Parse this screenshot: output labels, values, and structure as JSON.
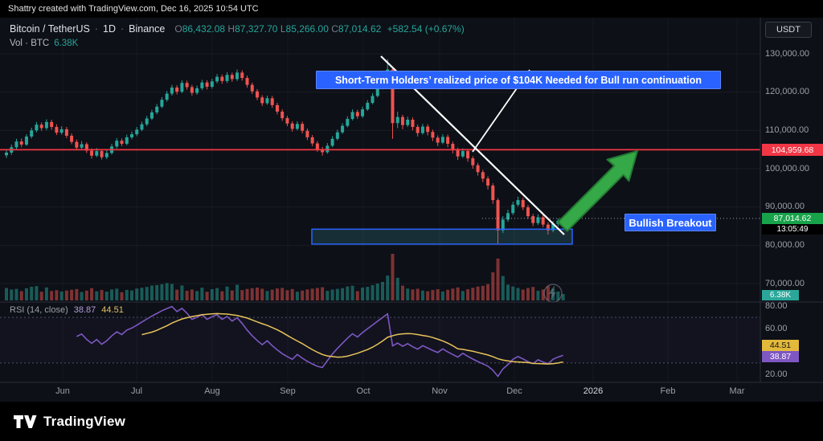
{
  "topbar": {
    "text": "Shattry created with TradingView.com, Dec 16, 2025 10:54 UTC"
  },
  "legend": {
    "symbol": "Bitcoin / TetherUS",
    "sep": "·",
    "interval": "1D",
    "exchange": "Binance",
    "ohlc": {
      "o": "O",
      "o_val": "86,432.08",
      "h": "H",
      "h_val": "87,327.70",
      "l": "L",
      "l_val": "85,266.00",
      "c": "C",
      "c_val": "87,014.62",
      "change": "+582.54 (+0.67%)"
    },
    "volume_label": "Vol · BTC",
    "volume_value": "6.38K"
  },
  "toolbar": {
    "usdt_label": "USDT"
  },
  "annotations": {
    "main": "Short-Term Holders’ realized price of $104K Needed for Bull run continuation",
    "breakout": "Bullish Breakout"
  },
  "axis_tags": {
    "price_line": "104,959.68",
    "last_price": "87,014.62",
    "countdown": "13:05:49",
    "volume": "6.38K",
    "rsi_ma": "44.51",
    "rsi": "38.87"
  },
  "rsi_panel": {
    "title": "RSI (14, close)",
    "value": "38.87",
    "ma_value": "44.51"
  },
  "price_axis": {
    "labels": [
      "130,000.00",
      "120,000.00",
      "110,000.00",
      "100,000.00",
      "90,000.00",
      "80,000.00",
      "70,000.00"
    ],
    "values": [
      130000,
      120000,
      110000,
      100000,
      90000,
      80000,
      70000
    ]
  },
  "rsi_axis": {
    "labels": [
      "80.00",
      "60.00",
      "40.00",
      "20.00"
    ],
    "values": [
      80,
      60,
      40,
      20
    ]
  },
  "time_axis": {
    "labels": [
      "Jun",
      "Jul",
      "Aug",
      "Sep",
      "Oct",
      "Nov",
      "Dec",
      "2026",
      "Feb",
      "Mar"
    ]
  },
  "footer": {
    "brand": "TradingView"
  },
  "chart_data": {
    "type": "candlestick",
    "symbol": "Bitcoin / TetherUS",
    "interval": "1D",
    "exchange": "Binance",
    "price_unit": "USD thousands",
    "volume_unit": "BTC thousands",
    "visible_price_range": [
      65000,
      132000
    ],
    "x_axis_months": [
      "Jun",
      "Jul",
      "Aug",
      "Sep",
      "Oct",
      "Nov",
      "Dec",
      "2026",
      "Feb",
      "Mar"
    ],
    "candles": [
      [
        103.5,
        104.9,
        102.8,
        104.2,
        12.4
      ],
      [
        104.2,
        106.3,
        103.6,
        105.6,
        10.8
      ],
      [
        105.6,
        107.8,
        105.1,
        107.1,
        11.5
      ],
      [
        107.1,
        107.9,
        105.6,
        106.3,
        9.2
      ],
      [
        106.3,
        109.0,
        105.9,
        108.4,
        12.1
      ],
      [
        108.4,
        110.7,
        107.9,
        110.0,
        13.6
      ],
      [
        110.0,
        112.2,
        109.5,
        111.5,
        14.2
      ],
      [
        111.5,
        112.1,
        109.9,
        110.6,
        8.7
      ],
      [
        110.6,
        112.9,
        110.1,
        112.2,
        12.9
      ],
      [
        112.2,
        112.8,
        110.2,
        110.9,
        9.4
      ],
      [
        110.9,
        111.6,
        108.8,
        109.4,
        10.2
      ],
      [
        109.4,
        111.1,
        108.9,
        110.3,
        8.9
      ],
      [
        110.3,
        110.9,
        108.0,
        108.6,
        9.8
      ],
      [
        108.6,
        109.2,
        106.4,
        107.0,
        10.6
      ],
      [
        107.0,
        107.6,
        104.9,
        105.5,
        11.3
      ],
      [
        105.5,
        107.2,
        105.0,
        106.4,
        8.4
      ],
      [
        106.4,
        106.9,
        104.1,
        104.7,
        9.7
      ],
      [
        104.7,
        105.3,
        102.6,
        103.4,
        12.2
      ],
      [
        103.4,
        105.4,
        103.0,
        104.6,
        9.1
      ],
      [
        104.6,
        105.1,
        102.4,
        103.0,
        10.4
      ],
      [
        103.0,
        104.8,
        102.5,
        104.1,
        8.8
      ],
      [
        104.1,
        106.5,
        103.7,
        105.8,
        10.9
      ],
      [
        105.8,
        108.0,
        105.3,
        107.3,
        11.7
      ],
      [
        107.3,
        107.9,
        105.9,
        106.5,
        8.2
      ],
      [
        106.5,
        108.9,
        106.1,
        108.2,
        10.5
      ],
      [
        108.2,
        109.7,
        107.7,
        109.0,
        9.9
      ],
      [
        109.0,
        110.9,
        108.5,
        110.2,
        11.8
      ],
      [
        110.2,
        112.3,
        109.8,
        111.6,
        12.6
      ],
      [
        111.6,
        113.8,
        111.1,
        113.1,
        13.4
      ],
      [
        113.1,
        115.4,
        112.7,
        114.7,
        14.8
      ],
      [
        114.7,
        116.9,
        114.2,
        116.2,
        15.3
      ],
      [
        116.2,
        118.7,
        115.8,
        118.0,
        16.1
      ],
      [
        118.0,
        120.3,
        117.5,
        119.6,
        17.2
      ],
      [
        119.6,
        121.9,
        119.1,
        121.2,
        16.4
      ],
      [
        121.2,
        121.8,
        119.4,
        120.1,
        10.7
      ],
      [
        120.1,
        123.1,
        119.7,
        122.4,
        14.9
      ],
      [
        122.4,
        123.0,
        120.6,
        121.3,
        9.6
      ],
      [
        121.3,
        121.9,
        119.1,
        119.8,
        10.8
      ],
      [
        119.8,
        121.7,
        119.3,
        121.0,
        9.3
      ],
      [
        121.0,
        123.2,
        120.5,
        122.5,
        12.7
      ],
      [
        122.5,
        123.1,
        120.7,
        121.4,
        8.6
      ],
      [
        121.4,
        123.5,
        120.9,
        122.8,
        11.2
      ],
      [
        122.8,
        124.7,
        122.3,
        124.0,
        12.3
      ],
      [
        124.0,
        124.6,
        122.2,
        122.9,
        9.1
      ],
      [
        122.9,
        125.2,
        122.4,
        124.5,
        13.8
      ],
      [
        124.5,
        125.1,
        122.7,
        123.4,
        9.9
      ],
      [
        123.4,
        125.9,
        122.9,
        125.1,
        15.6
      ],
      [
        125.1,
        125.7,
        123.0,
        123.7,
        10.3
      ],
      [
        123.7,
        124.3,
        121.2,
        121.9,
        11.4
      ],
      [
        121.9,
        122.5,
        119.5,
        120.2,
        12.1
      ],
      [
        120.2,
        120.8,
        117.9,
        118.6,
        12.8
      ],
      [
        118.6,
        119.2,
        116.4,
        117.1,
        11.6
      ],
      [
        117.1,
        119.1,
        116.7,
        118.4,
        9.4
      ],
      [
        118.4,
        119.0,
        115.9,
        116.6,
        10.7
      ],
      [
        116.6,
        117.2,
        114.2,
        114.9,
        11.9
      ],
      [
        114.9,
        115.5,
        112.5,
        113.2,
        12.5
      ],
      [
        113.2,
        113.8,
        111.1,
        111.8,
        10.1
      ],
      [
        111.8,
        112.4,
        109.7,
        110.4,
        11.3
      ],
      [
        110.4,
        112.4,
        110.0,
        111.7,
        8.7
      ],
      [
        111.7,
        112.3,
        109.2,
        109.9,
        9.8
      ],
      [
        109.9,
        110.5,
        107.5,
        108.2,
        10.9
      ],
      [
        108.2,
        108.8,
        105.9,
        106.6,
        11.7
      ],
      [
        106.6,
        107.2,
        104.4,
        105.1,
        12.4
      ],
      [
        105.1,
        105.7,
        103.4,
        104.3,
        13.1
      ],
      [
        104.3,
        106.7,
        103.9,
        106.0,
        9.6
      ],
      [
        106.0,
        108.5,
        105.6,
        107.8,
        10.8
      ],
      [
        107.8,
        110.2,
        107.4,
        109.5,
        11.5
      ],
      [
        109.5,
        111.9,
        109.1,
        111.2,
        12.2
      ],
      [
        111.2,
        113.7,
        110.8,
        113.0,
        13.9
      ],
      [
        113.0,
        115.5,
        112.6,
        114.8,
        14.6
      ],
      [
        114.8,
        115.4,
        113.0,
        113.7,
        9.2
      ],
      [
        113.7,
        116.2,
        113.3,
        115.5,
        12.8
      ],
      [
        115.5,
        117.9,
        115.1,
        117.2,
        13.5
      ],
      [
        117.2,
        119.7,
        116.8,
        119.0,
        15.2
      ],
      [
        119.0,
        121.8,
        118.6,
        121.1,
        16.8
      ],
      [
        121.1,
        124.1,
        120.7,
        123.4,
        18.4
      ],
      [
        123.4,
        128.6,
        122.9,
        125.9,
        24.7
      ],
      [
        125.9,
        126.6,
        107.8,
        111.9,
        46.3
      ],
      [
        111.9,
        114.9,
        110.6,
        113.5,
        22.5
      ],
      [
        113.5,
        114.1,
        110.3,
        111.4,
        14.7
      ],
      [
        111.4,
        113.6,
        110.9,
        112.8,
        11.8
      ],
      [
        112.8,
        113.4,
        110.0,
        110.9,
        10.9
      ],
      [
        110.9,
        111.5,
        108.4,
        109.3,
        11.6
      ],
      [
        109.3,
        111.7,
        108.9,
        111.0,
        9.8
      ],
      [
        111.0,
        111.6,
        108.7,
        109.6,
        9.1
      ],
      [
        109.6,
        110.2,
        107.2,
        108.1,
        10.4
      ],
      [
        108.1,
        108.7,
        105.9,
        106.8,
        11.2
      ],
      [
        106.8,
        109.0,
        106.4,
        108.3,
        8.9
      ],
      [
        108.3,
        108.9,
        105.6,
        106.5,
        10.6
      ],
      [
        106.5,
        107.1,
        104.0,
        104.9,
        11.8
      ],
      [
        104.9,
        105.5,
        102.3,
        103.2,
        12.9
      ],
      [
        103.2,
        105.3,
        102.8,
        104.6,
        9.4
      ],
      [
        104.6,
        105.2,
        101.8,
        102.7,
        11.1
      ],
      [
        102.7,
        103.3,
        100.0,
        100.9,
        12.6
      ],
      [
        100.9,
        101.5,
        98.2,
        99.1,
        13.8
      ],
      [
        99.1,
        99.7,
        96.5,
        97.4,
        14.5
      ],
      [
        97.4,
        98.0,
        94.6,
        95.6,
        16.2
      ],
      [
        95.6,
        96.2,
        90.8,
        91.8,
        27.9
      ],
      [
        91.8,
        92.3,
        80.5,
        83.9,
        41.6
      ],
      [
        83.9,
        87.6,
        83.2,
        86.7,
        24.3
      ],
      [
        86.7,
        89.3,
        86.1,
        88.4,
        15.7
      ],
      [
        88.4,
        91.4,
        87.9,
        90.6,
        13.9
      ],
      [
        90.6,
        92.7,
        90.1,
        91.8,
        12.4
      ],
      [
        91.8,
        92.4,
        89.2,
        89.9,
        10.8
      ],
      [
        89.9,
        90.5,
        86.9,
        87.6,
        12.3
      ],
      [
        87.6,
        88.2,
        85.0,
        85.8,
        13.4
      ],
      [
        85.8,
        88.1,
        85.3,
        87.3,
        9.7
      ],
      [
        87.3,
        87.9,
        84.7,
        85.4,
        10.9
      ],
      [
        85.4,
        86.0,
        82.8,
        83.9,
        14.2
      ],
      [
        83.9,
        86.3,
        83.4,
        85.6,
        11.6
      ],
      [
        85.6,
        87.0,
        85.0,
        86.4,
        8.8
      ],
      [
        86.43,
        87.33,
        85.27,
        87.01,
        6.38
      ]
    ],
    "last_price": 87014.62,
    "horizontal_line": {
      "price": 104959.68,
      "color": "#f23645"
    },
    "zone": {
      "price_low": 80300,
      "price_high": 84200,
      "border_color": "#2962ff"
    },
    "indicators": {
      "rsi": {
        "period": 14,
        "source": "close",
        "value": 38.87,
        "ma_value": 44.51,
        "levels": [
          70,
          30
        ]
      }
    },
    "annotations": [
      "Short-Term Holders’ realized price of $104K Needed for Bull run continuation",
      "Bullish Breakout"
    ],
    "colors": {
      "up": "#26a69a",
      "down": "#ef5350",
      "level_red": "#f23645",
      "annotation_blue": "#2962ff",
      "arrow_green": "#35a947",
      "arrow_green_dark": "#237a31",
      "trendline": "#ffffff",
      "rsi": "#7e57c2",
      "rsi_ma": "#e8c35a",
      "bg": "#0d1017",
      "axis_text": "#9aa0aa"
    }
  }
}
